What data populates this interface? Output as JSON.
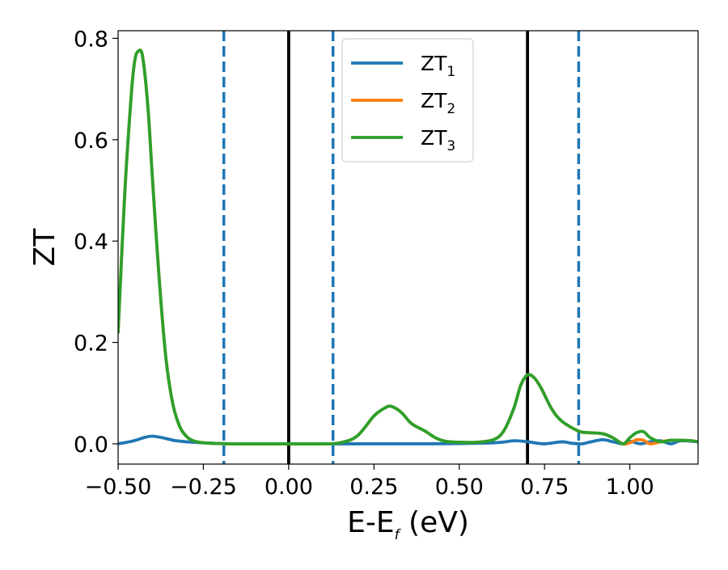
{
  "chart_data": {
    "type": "line",
    "title": "",
    "xlabel": {
      "main": "E-E",
      "sub": "f",
      "suffix": " (eV)"
    },
    "ylabel": "ZT",
    "xlim": [
      -0.5,
      1.2
    ],
    "ylim": [
      -0.04,
      0.815
    ],
    "xticks": [
      -0.5,
      -0.25,
      0.0,
      0.25,
      0.5,
      0.75,
      1.0
    ],
    "xtick_labels": [
      "−0.50",
      "−0.25",
      "0.00",
      "0.25",
      "0.50",
      "0.75",
      "1.00"
    ],
    "yticks": [
      0.0,
      0.2,
      0.4,
      0.6,
      0.8
    ],
    "ytick_labels": [
      "0.0",
      "0.2",
      "0.4",
      "0.6",
      "0.8"
    ],
    "grid": false,
    "legend_position": "top-center",
    "vlines": [
      {
        "x": -0.19,
        "style": "dashed",
        "color": "#1f77b4"
      },
      {
        "x": 0.0,
        "style": "solid",
        "color": "#000000"
      },
      {
        "x": 0.13,
        "style": "dashed",
        "color": "#1f77b4"
      },
      {
        "x": 0.7,
        "style": "solid",
        "color": "#000000"
      },
      {
        "x": 0.85,
        "style": "dashed",
        "color": "#1f77b4"
      }
    ],
    "series": [
      {
        "name": "ZT",
        "sub": "1",
        "color": "#1f77b4",
        "x": [
          -0.5,
          -0.46,
          -0.42,
          -0.4,
          -0.37,
          -0.33,
          -0.28,
          -0.22,
          -0.15,
          0.0,
          0.2,
          0.4,
          0.6,
          0.66,
          0.7,
          0.75,
          0.8,
          0.83,
          0.86,
          0.88,
          0.92,
          0.95,
          0.98,
          1.0,
          1.03,
          1.06,
          1.09,
          1.12,
          1.15,
          1.2
        ],
        "y": [
          0.0,
          0.005,
          0.013,
          0.015,
          0.012,
          0.006,
          0.003,
          0.001,
          0.0,
          0.0,
          0.0,
          0.0,
          0.002,
          0.006,
          0.004,
          0.0,
          0.004,
          0.001,
          0.0,
          0.003,
          0.008,
          0.004,
          0.0,
          0.005,
          0.0,
          0.004,
          0.006,
          0.0,
          0.006,
          0.004
        ]
      },
      {
        "name": "ZT",
        "sub": "2",
        "color": "#ff7f0e",
        "x": [
          -0.5,
          -0.48,
          -0.46,
          -0.45,
          -0.44,
          -0.43,
          -0.42,
          -0.41,
          -0.4,
          -0.38,
          -0.36,
          -0.34,
          -0.32,
          -0.3,
          -0.28,
          -0.25,
          -0.22,
          -0.18,
          -0.1,
          0.0,
          0.1,
          0.15,
          0.2,
          0.25,
          0.28,
          0.3,
          0.33,
          0.36,
          0.4,
          0.43,
          0.46,
          0.5,
          0.55,
          0.6,
          0.63,
          0.66,
          0.68,
          0.7,
          0.72,
          0.74,
          0.77,
          0.8,
          0.85,
          0.88,
          0.92,
          0.95,
          0.98,
          1.0,
          1.02,
          1.04,
          1.06,
          1.09,
          1.12,
          1.15,
          1.18,
          1.2
        ],
        "y": [
          0.22,
          0.5,
          0.7,
          0.76,
          0.775,
          0.77,
          0.72,
          0.64,
          0.53,
          0.33,
          0.17,
          0.08,
          0.035,
          0.015,
          0.006,
          0.002,
          0.001,
          0.0,
          0.0,
          0.0,
          0.0,
          0.002,
          0.015,
          0.055,
          0.07,
          0.074,
          0.062,
          0.04,
          0.025,
          0.012,
          0.005,
          0.003,
          0.003,
          0.008,
          0.025,
          0.07,
          0.115,
          0.136,
          0.13,
          0.11,
          0.07,
          0.045,
          0.025,
          0.022,
          0.02,
          0.012,
          0.0,
          0.002,
          0.008,
          0.007,
          0.0,
          0.004,
          0.007,
          0.007,
          0.006,
          0.004
        ]
      },
      {
        "name": "ZT",
        "sub": "3",
        "color": "#2ca02c",
        "x": [
          -0.5,
          -0.48,
          -0.46,
          -0.45,
          -0.44,
          -0.43,
          -0.42,
          -0.41,
          -0.4,
          -0.38,
          -0.36,
          -0.34,
          -0.32,
          -0.3,
          -0.28,
          -0.25,
          -0.22,
          -0.18,
          -0.1,
          0.0,
          0.1,
          0.15,
          0.2,
          0.25,
          0.28,
          0.3,
          0.33,
          0.36,
          0.4,
          0.43,
          0.46,
          0.5,
          0.55,
          0.6,
          0.63,
          0.66,
          0.68,
          0.7,
          0.72,
          0.74,
          0.77,
          0.8,
          0.85,
          0.88,
          0.92,
          0.95,
          0.98,
          1.0,
          1.02,
          1.04,
          1.06,
          1.09,
          1.12,
          1.15,
          1.18,
          1.2
        ],
        "y": [
          0.22,
          0.5,
          0.7,
          0.76,
          0.775,
          0.77,
          0.72,
          0.64,
          0.53,
          0.33,
          0.17,
          0.08,
          0.035,
          0.015,
          0.006,
          0.002,
          0.001,
          0.0,
          0.0,
          0.0,
          0.0,
          0.002,
          0.015,
          0.055,
          0.07,
          0.074,
          0.062,
          0.04,
          0.025,
          0.012,
          0.005,
          0.003,
          0.003,
          0.008,
          0.025,
          0.07,
          0.115,
          0.136,
          0.13,
          0.11,
          0.07,
          0.045,
          0.025,
          0.022,
          0.02,
          0.012,
          0.0,
          0.012,
          0.022,
          0.024,
          0.012,
          0.004,
          0.007,
          0.007,
          0.006,
          0.004
        ]
      }
    ]
  }
}
